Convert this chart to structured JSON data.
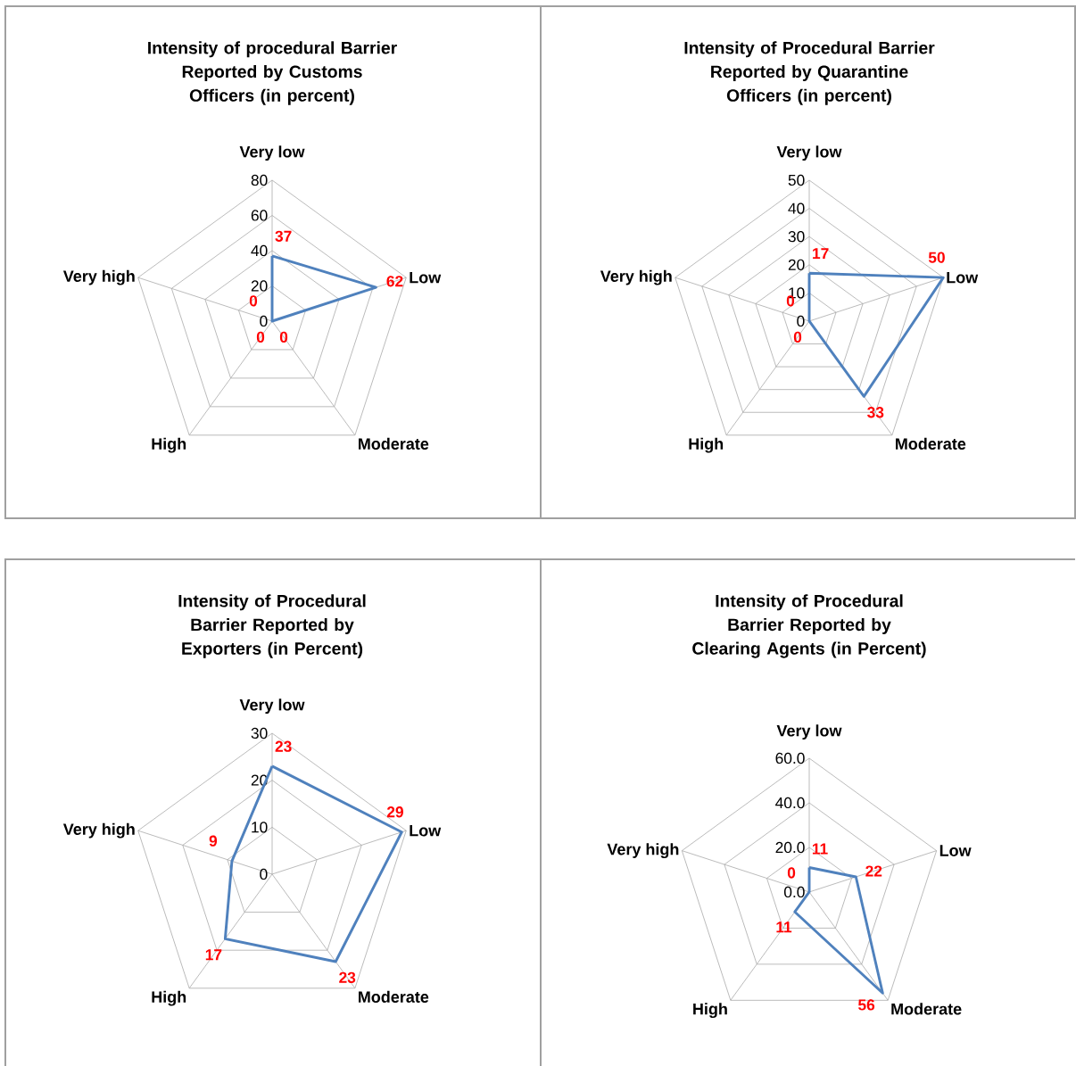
{
  "chart_data": [
    {
      "type": "radar",
      "title": "Intensity of procedural Barrier Reported by Customs Officers (in percent)",
      "categories": [
        "Very low",
        "Low",
        "Moderate",
        "High",
        "Very high"
      ],
      "series": [
        {
          "color": "#4f81bd",
          "values": [
            37,
            62,
            0,
            0,
            0
          ]
        }
      ],
      "ylim": [
        0,
        80
      ],
      "yticks": [
        0,
        20,
        40,
        60,
        80
      ],
      "grid": true,
      "data_labels": true
    },
    {
      "type": "radar",
      "title": "Intensity of Procedural Barrier Reported by Quarantine Officers (in percent)",
      "categories": [
        "Very low",
        "Low",
        "Moderate",
        "High",
        "Very high"
      ],
      "series": [
        {
          "color": "#4f81bd",
          "values": [
            17,
            50,
            33,
            0,
            0
          ]
        }
      ],
      "ylim": [
        0,
        50
      ],
      "yticks": [
        0,
        10,
        20,
        30,
        40,
        50
      ],
      "grid": true,
      "data_labels": true
    },
    {
      "type": "radar",
      "title": "Intensity of Procedural Barrier Reported by Exporters (in Percent)",
      "categories": [
        "Very low",
        "Low",
        "Moderate",
        "High",
        "Very high"
      ],
      "series": [
        {
          "color": "#4f81bd",
          "values": [
            23,
            29,
            23,
            17,
            9
          ]
        }
      ],
      "ylim": [
        0,
        30
      ],
      "yticks": [
        0,
        10,
        20,
        30
      ],
      "grid": true,
      "data_labels": true
    },
    {
      "type": "radar",
      "title": "Intensity of Procedural Barrier Reported by Clearing Agents (in Percent)",
      "categories": [
        "Very low",
        "Low",
        "Moderate",
        "High",
        "Very high"
      ],
      "series": [
        {
          "color": "#4f81bd",
          "values": [
            11,
            22,
            56,
            11,
            0
          ]
        }
      ],
      "ylim": [
        0,
        60
      ],
      "yticks": [
        {
          "value": 0,
          "label": "0.0"
        },
        {
          "value": 20,
          "label": "20.0"
        },
        {
          "value": 40,
          "label": "40.0"
        },
        {
          "value": 60,
          "label": "60.0"
        }
      ],
      "grid": true,
      "data_labels": true
    }
  ]
}
